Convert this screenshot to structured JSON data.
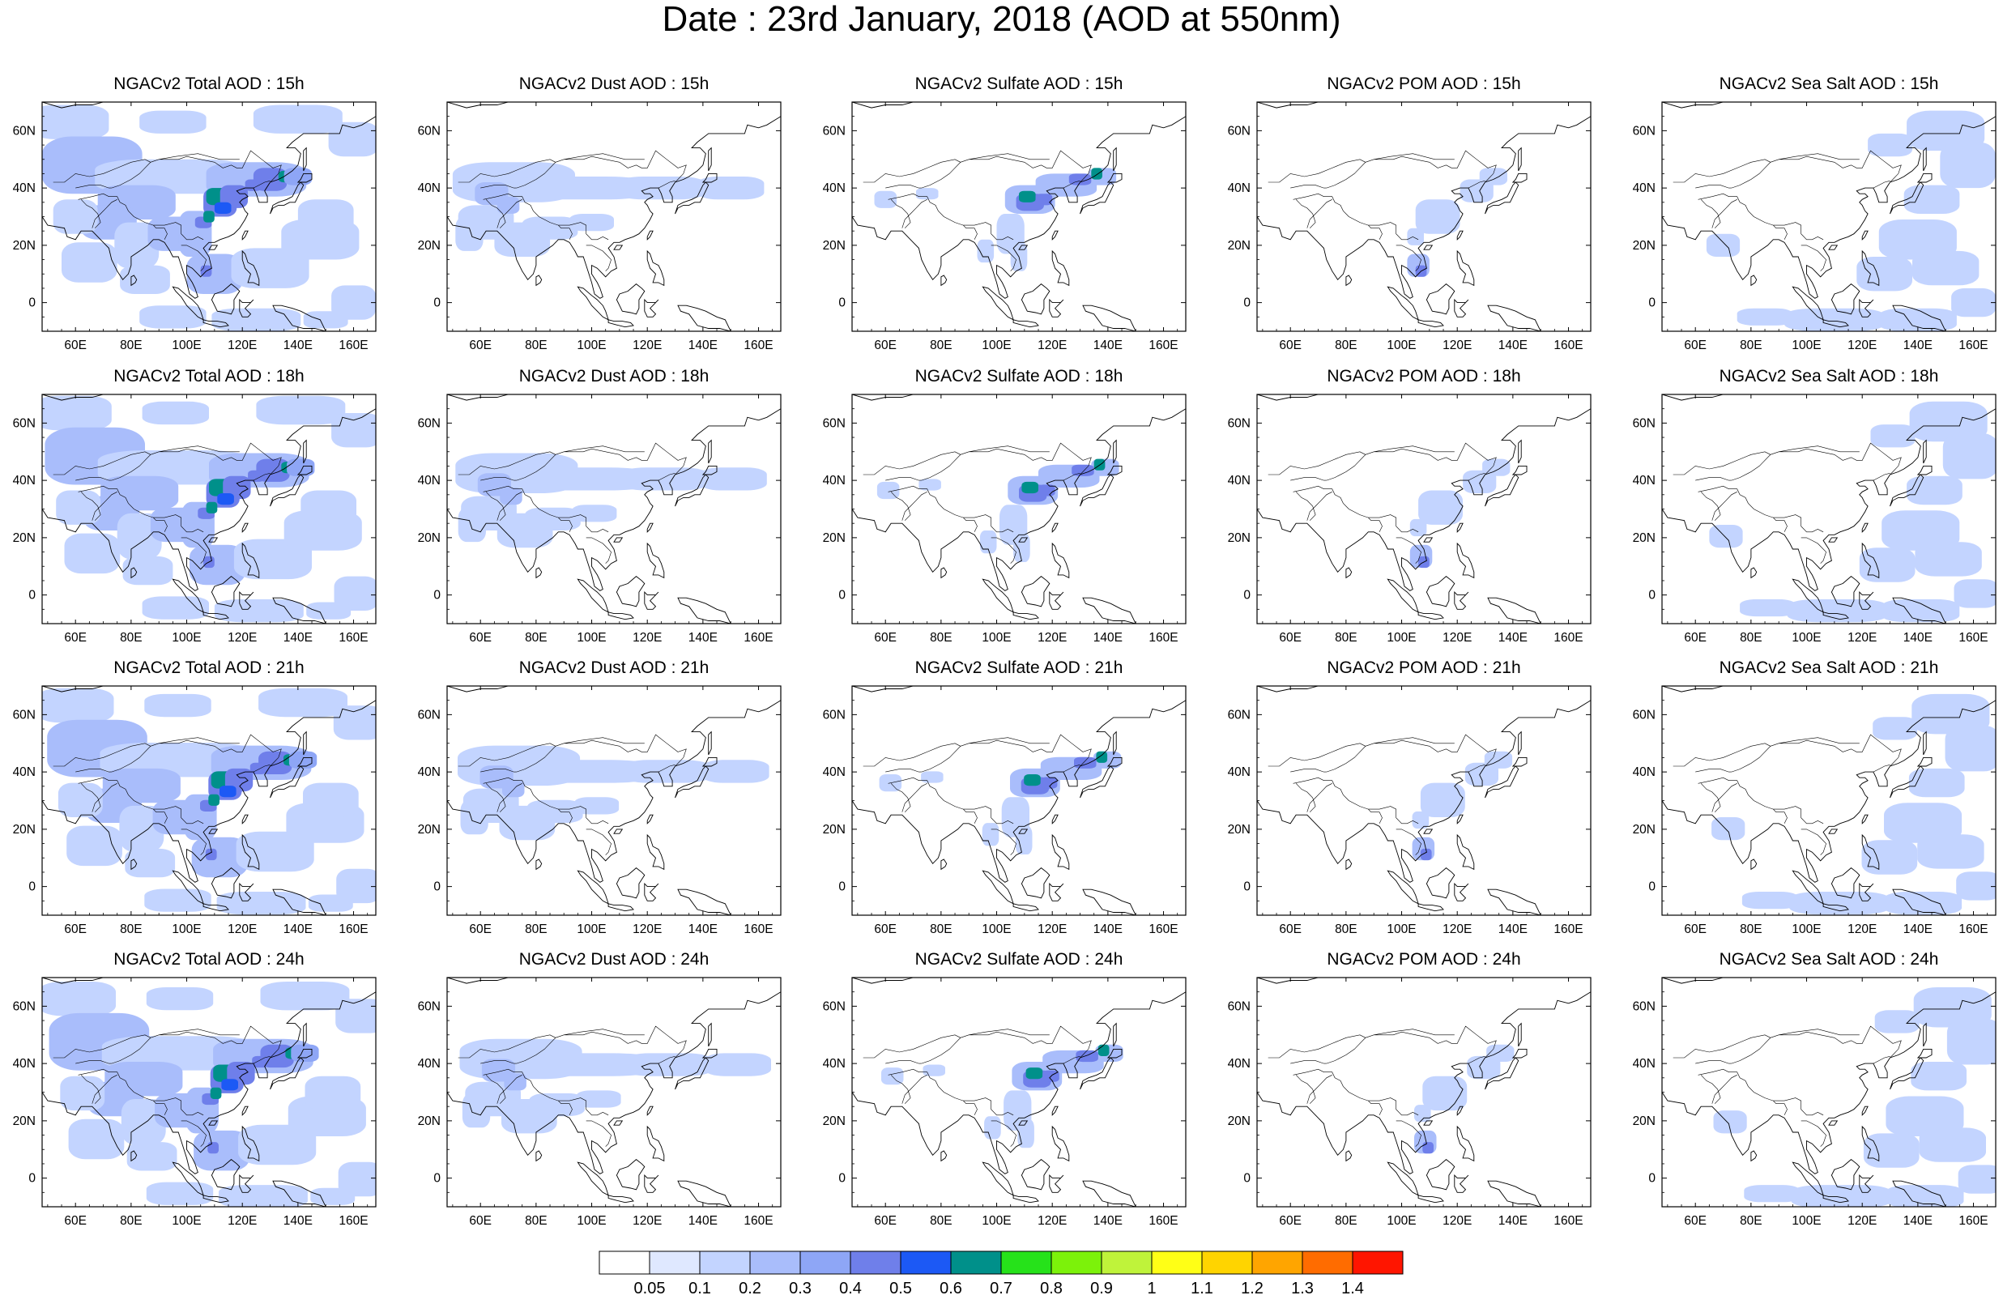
{
  "title": "Date : 23rd January, 2018 (AOD at 550nm)",
  "panels": [
    {
      "title": "NGACv2 Total AOD : 15h",
      "type": "total",
      "hour": "15h"
    },
    {
      "title": "NGACv2 Dust AOD : 15h",
      "type": "dust",
      "hour": "15h"
    },
    {
      "title": "NGACv2 Sulfate AOD : 15h",
      "type": "sulfate",
      "hour": "15h"
    },
    {
      "title": "NGACv2 POM AOD : 15h",
      "type": "pom",
      "hour": "15h"
    },
    {
      "title": "NGACv2 Sea Salt AOD : 15h",
      "type": "seasalt",
      "hour": "15h"
    },
    {
      "title": "NGACv2 Total AOD : 18h",
      "type": "total",
      "hour": "18h"
    },
    {
      "title": "NGACv2 Dust AOD : 18h",
      "type": "dust",
      "hour": "18h"
    },
    {
      "title": "NGACv2 Sulfate AOD : 18h",
      "type": "sulfate",
      "hour": "18h"
    },
    {
      "title": "NGACv2 POM AOD : 18h",
      "type": "pom",
      "hour": "18h"
    },
    {
      "title": "NGACv2 Sea Salt AOD : 18h",
      "type": "seasalt",
      "hour": "18h"
    },
    {
      "title": "NGACv2 Total AOD : 21h",
      "type": "total",
      "hour": "21h"
    },
    {
      "title": "NGACv2 Dust AOD : 21h",
      "type": "dust",
      "hour": "21h"
    },
    {
      "title": "NGACv2 Sulfate AOD : 21h",
      "type": "sulfate",
      "hour": "21h"
    },
    {
      "title": "NGACv2 POM AOD : 21h",
      "type": "pom",
      "hour": "21h"
    },
    {
      "title": "NGACv2 Sea Salt AOD : 21h",
      "type": "seasalt",
      "hour": "21h"
    },
    {
      "title": "NGACv2 Total AOD : 24h",
      "type": "total",
      "hour": "24h"
    },
    {
      "title": "NGACv2 Dust AOD : 24h",
      "type": "dust",
      "hour": "24h"
    },
    {
      "title": "NGACv2 Sulfate AOD : 24h",
      "type": "sulfate",
      "hour": "24h"
    },
    {
      "title": "NGACv2 POM AOD : 24h",
      "type": "pom",
      "hour": "24h"
    },
    {
      "title": "NGACv2 Sea Salt  AOD : 24h",
      "type": "seasalt",
      "hour": "24h"
    }
  ],
  "x_ticks": [
    "60E",
    "80E",
    "100E",
    "120E",
    "140E",
    "160E"
  ],
  "x_tick_values": [
    60,
    80,
    100,
    120,
    140,
    160
  ],
  "y_ticks": [
    "0",
    "20N",
    "40N",
    "60N"
  ],
  "y_tick_values": [
    0,
    20,
    40,
    60
  ],
  "map_extent": {
    "lon": [
      48,
      168
    ],
    "lat": [
      -10,
      70
    ]
  },
  "colorbar": {
    "labels": [
      "0.05",
      "0.1",
      "0.2",
      "0.3",
      "0.4",
      "0.5",
      "0.6",
      "0.7",
      "0.8",
      "0.9",
      "1",
      "1.1",
      "1.2",
      "1.3",
      "1.4"
    ],
    "colors": [
      "#ffffff",
      "#dfe8ff",
      "#c3d4ff",
      "#a9bdfb",
      "#8ea6f6",
      "#6f7fea",
      "#1c59f5",
      "#00908a",
      "#26e21a",
      "#7cf20a",
      "#bff33a",
      "#ffff16",
      "#ffd400",
      "#ffa500",
      "#ff6c00",
      "#ff1500"
    ]
  }
}
